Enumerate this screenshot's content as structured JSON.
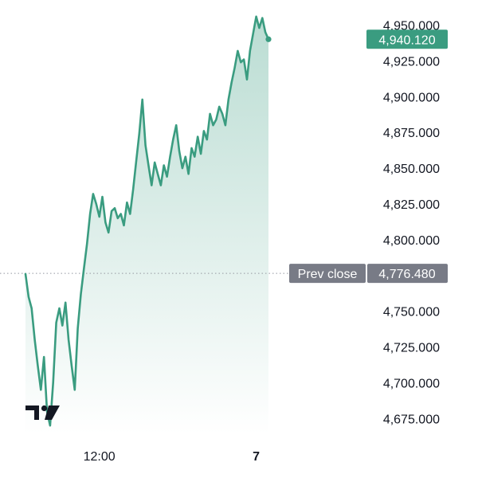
{
  "chart_data": {
    "type": "area",
    "title": "",
    "xlabel": "",
    "ylabel": "",
    "ylim": [
      4664,
      4962
    ],
    "y_ticks": [
      {
        "value": 4950,
        "label": "4,950.000"
      },
      {
        "value": 4925,
        "label": "4,925.000"
      },
      {
        "value": 4900,
        "label": "4,900.000"
      },
      {
        "value": 4875,
        "label": "4,875.000"
      },
      {
        "value": 4850,
        "label": "4,850.000"
      },
      {
        "value": 4825,
        "label": "4,825.000"
      },
      {
        "value": 4800,
        "label": "4,800.000"
      },
      {
        "value": 4750,
        "label": "4,750.000"
      },
      {
        "value": 4725,
        "label": "4,725.000"
      },
      {
        "value": 4700,
        "label": "4,700.000"
      },
      {
        "value": 4675,
        "label": "4,675.000"
      }
    ],
    "x_ticks": [
      {
        "index": 24,
        "label": "12:00",
        "bold": false
      },
      {
        "index": 75,
        "label": "7",
        "bold": true
      }
    ],
    "x_count": 80,
    "series": [
      {
        "color": "#3a9c80",
        "values": [
          4776,
          4760,
          4752,
          4730,
          4712,
          4695,
          4718,
          4680,
          4670,
          4700,
          4742,
          4752,
          4740,
          4756,
          4730,
          4712,
          4695,
          4738,
          4762,
          4780,
          4797,
          4818,
          4832,
          4825,
          4816,
          4830,
          4812,
          4805,
          4820,
          4822,
          4815,
          4818,
          4810,
          4826,
          4818,
          4835,
          4855,
          4874,
          4898,
          4866,
          4852,
          4838,
          4854,
          4846,
          4838,
          4852,
          4844,
          4858,
          4870,
          4880,
          4862,
          4850,
          4858,
          4846,
          4864,
          4858,
          4872,
          4860,
          4876,
          4870,
          4888,
          4880,
          4884,
          4893,
          4888,
          4880,
          4898,
          4910,
          4920,
          4932,
          4924,
          4926,
          4912,
          4932,
          4944,
          4956,
          4948,
          4955,
          4945,
          4940.12
        ]
      }
    ],
    "last_price": {
      "value": 4940.12,
      "label": "4,940.120",
      "color": "#3a9c80"
    },
    "prev_close": {
      "value": 4776.48,
      "label": "4,776.480",
      "text": "Prev close",
      "color": "#787b86"
    },
    "grid": false,
    "legend": "none"
  }
}
